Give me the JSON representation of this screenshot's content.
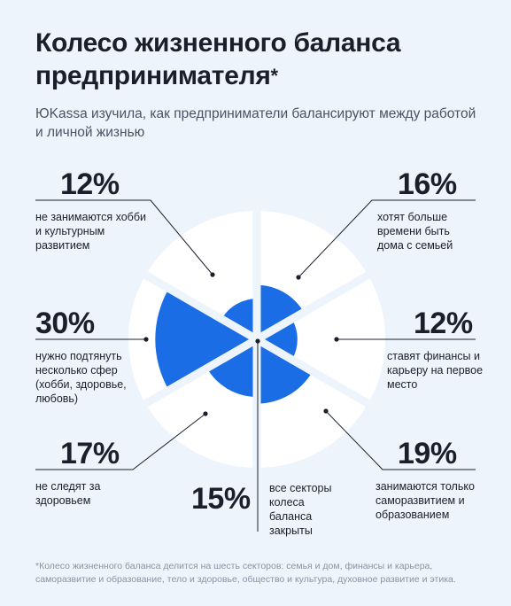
{
  "header": {
    "title": "Колесо жизненного баланса предпринимателя",
    "title_star": "*",
    "subtitle": "ЮKassa изучила, как предприниматели балансируют между работой и личной жизнью"
  },
  "footnote": "*Колесо жизненного баланса делится на шесть секторов: семья и дом, финансы и карьера, саморазвитие и образование, тело и здоровье, общество и культура, духовное развитие и этика.",
  "colors": {
    "accent": "#1a6de5",
    "wheel_outer": "#ffffff",
    "background": "#eef4fb",
    "text": "#1a1f2b",
    "line": "#1a1f2b"
  },
  "chart_data": {
    "type": "pie",
    "values_unit": "%",
    "entries": [
      {
        "value": 12,
        "value_label": "12%",
        "label": "не занимаются хобби и культурным развитием"
      },
      {
        "value": 16,
        "value_label": "16%",
        "label": "хотят больше времени быть дома с семьей"
      },
      {
        "value": 30,
        "value_label": "30%",
        "label": "нужно подтянуть несколько сфер (хобби, здоровье, любовь)"
      },
      {
        "value": 12,
        "value_label": "12%",
        "label": "ставят финансы и карьеру на первое место"
      },
      {
        "value": 17,
        "value_label": "17%",
        "label": "не следят за здоровьем"
      },
      {
        "value": 19,
        "value_label": "19%",
        "label": "занимаются только саморазвитием и образованием"
      },
      {
        "value": 15,
        "value_label": "15%",
        "label": "все секторы колеса баланса закрыты"
      }
    ],
    "sectors": [
      {
        "name": "top-right",
        "value": 16
      },
      {
        "name": "right",
        "value": 12
      },
      {
        "name": "bottom-right",
        "value": 19
      },
      {
        "name": "bottom-left",
        "value": 17
      },
      {
        "name": "left",
        "value": 30
      },
      {
        "name": "top-left",
        "value": 12
      }
    ]
  }
}
